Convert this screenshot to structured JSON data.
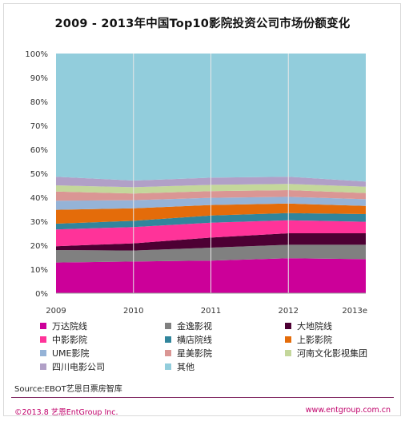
{
  "title": "2009 - 2013年中国Top10影院投资公司市场份额变化",
  "source": "Source:EBOT艺恩日票房智库",
  "footer_left": "©2013.8 艺恩EntGroup Inc.",
  "footer_right": "www.entgroup.com.cn",
  "chart_data": {
    "type": "area",
    "stacked": true,
    "x": [
      "2009",
      "2010",
      "2011",
      "2012",
      "2013e"
    ],
    "y_ticks": [
      "0%",
      "10%",
      "20%",
      "30%",
      "40%",
      "50%",
      "60%",
      "70%",
      "80%",
      "90%",
      "100%"
    ],
    "ylim": [
      0,
      100
    ],
    "grid": "vertical lines at each year",
    "legend_position": "bottom",
    "series": [
      {
        "name": "万达院线",
        "color": "#cc0099",
        "values": [
          12.8,
          13.2,
          13.6,
          14.6,
          14.2
        ]
      },
      {
        "name": "金逸影视",
        "color": "#808080",
        "values": [
          5.2,
          4.6,
          5.4,
          5.6,
          6.0
        ]
      },
      {
        "name": "大地院线",
        "color": "#4d0033",
        "values": [
          1.6,
          3.0,
          4.2,
          4.8,
          4.8
        ]
      },
      {
        "name": "中影影院",
        "color": "#ff3399",
        "values": [
          7.0,
          6.8,
          6.2,
          5.4,
          4.8
        ]
      },
      {
        "name": "横店院线",
        "color": "#31859c",
        "values": [
          2.4,
          2.6,
          3.0,
          3.0,
          3.2
        ]
      },
      {
        "name": "上影影院",
        "color": "#e46c0a",
        "values": [
          5.8,
          5.2,
          4.4,
          4.0,
          3.4
        ]
      },
      {
        "name": "UME影院",
        "color": "#95b3d7",
        "values": [
          3.8,
          3.4,
          3.0,
          2.8,
          2.8
        ]
      },
      {
        "name": "星美影院",
        "color": "#da9694",
        "values": [
          3.8,
          2.8,
          2.8,
          2.8,
          2.6
        ]
      },
      {
        "name": "河南文化影视集团",
        "color": "#c4d79b",
        "values": [
          2.6,
          2.6,
          2.6,
          2.6,
          2.6
        ]
      },
      {
        "name": "四川电影公司",
        "color": "#b1a0c7",
        "values": [
          3.6,
          2.8,
          3.0,
          3.0,
          2.2
        ]
      },
      {
        "name": "其他",
        "color": "#92cddc",
        "values": [
          51.4,
          53.0,
          51.8,
          51.4,
          53.4
        ]
      }
    ]
  }
}
